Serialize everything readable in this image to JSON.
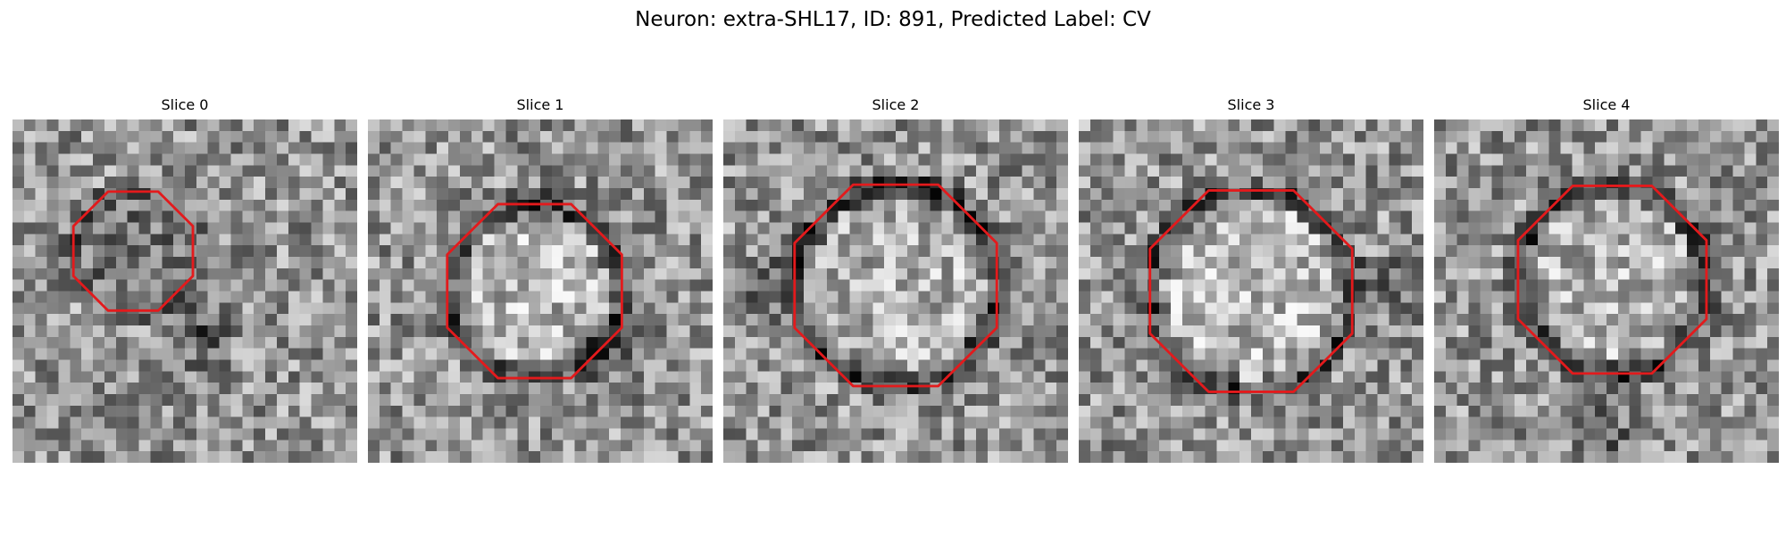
{
  "figure": {
    "title": "Neuron: extra-SHL17, ID: 891, Predicted Label: CV"
  },
  "slices": [
    {
      "title": "Slice 0"
    },
    {
      "title": "Slice 1"
    },
    {
      "title": "Slice 2"
    },
    {
      "title": "Slice 3"
    },
    {
      "title": "Slice 4"
    }
  ],
  "colors": {
    "contour": "#e31a1c",
    "background": "#ffffff"
  }
}
